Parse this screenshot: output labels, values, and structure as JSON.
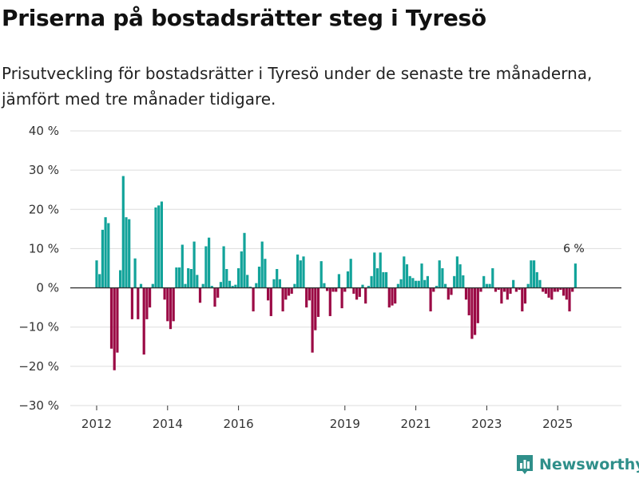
{
  "title": "Priserna på bostadsrätter steg i Tyresö",
  "subtitle": "Prisutveckling för bostadsrätter i Tyresö under de senaste tre månaderna, jämfört med tre månader tidigare.",
  "brand": "Newsworthy",
  "colors": {
    "positive": "#12a39a",
    "negative": "#9b0a45",
    "grid": "#dddddd",
    "zero": "#333333",
    "brand": "#2f8f8a"
  },
  "chart_data": {
    "type": "bar",
    "title": "Priserna på bostadsrätter steg i Tyresö",
    "ylabel": "",
    "xlabel": "",
    "ylim": [
      -30,
      40
    ],
    "yticks": [
      40,
      30,
      20,
      10,
      0,
      -10,
      -20,
      -30
    ],
    "ytick_labels": [
      "40 %",
      "30 %",
      "20 %",
      "10 %",
      "0 %",
      "−10 %",
      "−20 %",
      "−30 %"
    ],
    "xtick_labels": [
      {
        "label": "2012",
        "month_index": 0
      },
      {
        "label": "2014",
        "month_index": 24
      },
      {
        "label": "2016",
        "month_index": 48
      },
      {
        "label": "2019",
        "month_index": 84
      },
      {
        "label": "2021",
        "month_index": 108
      },
      {
        "label": "2023",
        "month_index": 132
      },
      {
        "label": "2025",
        "month_index": 156
      }
    ],
    "start": "2012-01",
    "last_value_label": "6 %",
    "values": [
      7,
      3.5,
      14.8,
      18,
      16.5,
      -15.5,
      -21,
      -16.5,
      4.5,
      28.5,
      18,
      17.5,
      -8,
      7.5,
      -8,
      1,
      -17,
      -8,
      -5,
      1,
      20.5,
      21,
      22,
      -3,
      -8.5,
      -10.5,
      -8.5,
      5.2,
      5.2,
      11,
      1,
      5,
      4.8,
      11.8,
      3.3,
      -3.8,
      1,
      10.6,
      12.8,
      0.5,
      -4.8,
      -2.5,
      1.5,
      10.6,
      4.8,
      1.8,
      0.5,
      0.8,
      5,
      9.3,
      14,
      3.3,
      0.3,
      -6,
      1.2,
      5.4,
      11.8,
      7.4,
      -3.2,
      -7.2,
      2.2,
      4.8,
      2.2,
      -6,
      -3,
      -2,
      -1.5,
      1,
      8.5,
      7,
      8,
      -5,
      -3.2,
      -16.5,
      -10.8,
      -7.4,
      6.8,
      1.2,
      -0.8,
      -7.2,
      -1,
      -1,
      3.5,
      -5.2,
      -1,
      4.2,
      7.4,
      -1.5,
      -3,
      -2.3,
      0.8,
      -4,
      0.5,
      3,
      9,
      5,
      9,
      4,
      4,
      -5,
      -4.5,
      -4,
      1,
      2.2,
      8,
      6,
      3,
      2.5,
      1.8,
      1.8,
      6.2,
      2,
      3,
      -6,
      -1,
      0.5,
      7,
      5,
      1,
      -3,
      -1.8,
      3,
      8,
      6,
      3.2,
      -3,
      -7,
      -13,
      -12,
      -9,
      -1,
      3,
      1,
      1,
      5,
      -1,
      -0.5,
      -4,
      -1,
      -3,
      -1.5,
      2,
      -1,
      -0.5,
      -6,
      -4,
      1,
      7,
      7,
      4,
      2,
      -1,
      -1.5,
      -2.5,
      -3,
      -1,
      -1,
      -0.5,
      -2,
      -3,
      -6,
      -1,
      6.2
    ]
  }
}
